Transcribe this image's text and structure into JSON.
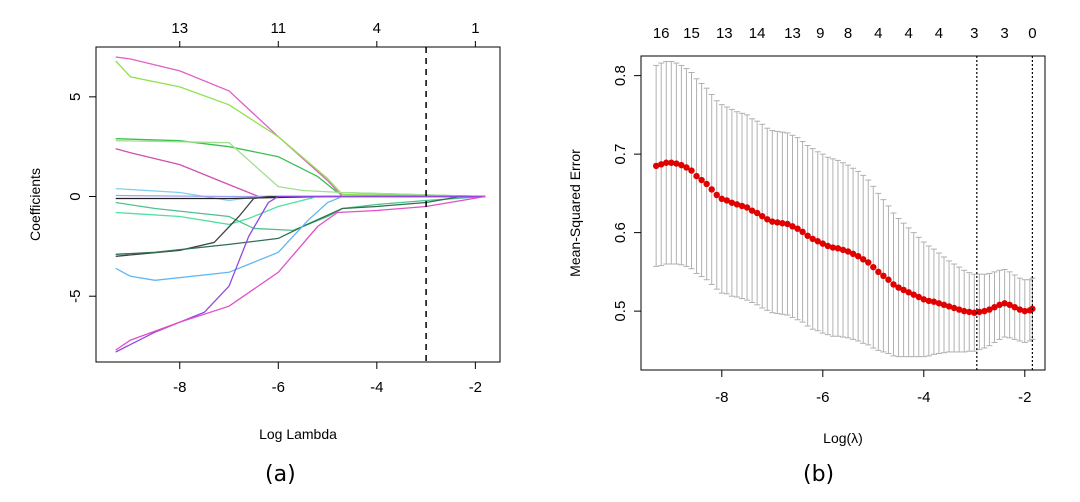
{
  "chart_data": [
    {
      "type": "line",
      "xlabel": "Log Lambda",
      "ylabel": "Coefficients",
      "caption": "(a)",
      "xlim": [
        -9.7,
        -1.5
      ],
      "ylim": [
        -8.3,
        7.5
      ],
      "xticks": [
        -8,
        -6,
        -4,
        -2
      ],
      "yticks": [
        -5,
        0,
        5
      ],
      "top_axis": {
        "positions": [
          -8,
          -6,
          -4,
          -2
        ],
        "labels": [
          "13",
          "11",
          "4",
          "1"
        ]
      },
      "vline": -3.0,
      "grid": false,
      "series": [
        {
          "color": "#e060c8",
          "points": [
            [
              -9.3,
              7.0
            ],
            [
              -9.0,
              6.9
            ],
            [
              -8.0,
              6.3
            ],
            [
              -7.0,
              5.3
            ],
            [
              -6.0,
              3.0
            ],
            [
              -5.0,
              0.8
            ],
            [
              -4.7,
              0.0
            ],
            [
              -1.8,
              0.0
            ]
          ]
        },
        {
          "color": "#90e050",
          "points": [
            [
              -9.3,
              6.8
            ],
            [
              -9.0,
              6.0
            ],
            [
              -8.0,
              5.5
            ],
            [
              -7.0,
              4.6
            ],
            [
              -6.0,
              3.0
            ],
            [
              -5.0,
              0.9
            ],
            [
              -4.7,
              0.1
            ],
            [
              -1.8,
              0.0
            ]
          ]
        },
        {
          "color": "#3cc050",
          "points": [
            [
              -9.3,
              2.9
            ],
            [
              -8.0,
              2.8
            ],
            [
              -7.0,
              2.5
            ],
            [
              -6.0,
              2.0
            ],
            [
              -5.2,
              1.0
            ],
            [
              -4.8,
              0.2
            ],
            [
              -1.8,
              0.0
            ]
          ]
        },
        {
          "color": "#d050b0",
          "points": [
            [
              -9.3,
              2.4
            ],
            [
              -9.0,
              2.2
            ],
            [
              -8.0,
              1.6
            ],
            [
              -7.0,
              0.6
            ],
            [
              -6.4,
              0.0
            ],
            [
              -1.8,
              0.0
            ]
          ]
        },
        {
          "color": "#a0e090",
          "points": [
            [
              -9.3,
              2.8
            ],
            [
              -7.0,
              2.7
            ],
            [
              -6.0,
              0.5
            ],
            [
              -5.5,
              0.3
            ],
            [
              -4.7,
              0.2
            ],
            [
              -1.8,
              0.0
            ]
          ]
        },
        {
          "color": "#80d0f0",
          "points": [
            [
              -9.3,
              0.4
            ],
            [
              -8.0,
              0.2
            ],
            [
              -7.0,
              -0.2
            ],
            [
              -6.4,
              0.0
            ],
            [
              -1.8,
              0.0
            ]
          ]
        },
        {
          "color": "#a0a0f0",
          "points": [
            [
              -9.3,
              0.05
            ],
            [
              -7.0,
              0.0
            ],
            [
              -6.0,
              0.0
            ],
            [
              -1.8,
              0.0
            ]
          ]
        },
        {
          "color": "#202020",
          "points": [
            [
              -9.3,
              -0.1
            ],
            [
              -7.0,
              -0.1
            ],
            [
              -5.0,
              0.0
            ],
            [
              -1.8,
              0.0
            ]
          ]
        },
        {
          "color": "#50e0a0",
          "points": [
            [
              -9.3,
              -0.8
            ],
            [
              -8.0,
              -1.0
            ],
            [
              -7.0,
              -1.4
            ],
            [
              -6.6,
              -1.1
            ],
            [
              -6.0,
              -0.5
            ],
            [
              -5.2,
              0.0
            ],
            [
              -1.8,
              0.0
            ]
          ]
        },
        {
          "color": "#50c090",
          "points": [
            [
              -9.3,
              -0.3
            ],
            [
              -8.5,
              -0.6
            ],
            [
              -7.0,
              -1.0
            ],
            [
              -6.5,
              -1.6
            ],
            [
              -5.7,
              -1.7
            ],
            [
              -5.0,
              -1.0
            ],
            [
              -4.7,
              -0.6
            ],
            [
              -4.0,
              -0.4
            ],
            [
              -3.0,
              -0.2
            ],
            [
              -1.8,
              0.0
            ]
          ]
        },
        {
          "color": "#404040",
          "points": [
            [
              -9.3,
              -3.0
            ],
            [
              -8.0,
              -2.7
            ],
            [
              -7.3,
              -2.3
            ],
            [
              -6.8,
              -1.0
            ],
            [
              -6.5,
              -0.1
            ],
            [
              -6.2,
              0.0
            ],
            [
              -1.8,
              0.0
            ]
          ]
        },
        {
          "color": "#307050",
          "points": [
            [
              -9.3,
              -2.9
            ],
            [
              -8.5,
              -2.8
            ],
            [
              -7.0,
              -2.4
            ],
            [
              -6.0,
              -2.1
            ],
            [
              -5.5,
              -1.5
            ],
            [
              -4.7,
              -0.6
            ],
            [
              -4.0,
              -0.5
            ],
            [
              -3.0,
              -0.3
            ],
            [
              -2.3,
              0.0
            ],
            [
              -1.8,
              0.0
            ]
          ]
        },
        {
          "color": "#60b8f0",
          "points": [
            [
              -9.3,
              -3.6
            ],
            [
              -9.0,
              -4.0
            ],
            [
              -8.5,
              -4.2
            ],
            [
              -7.0,
              -3.8
            ],
            [
              -6.0,
              -2.8
            ],
            [
              -5.4,
              -1.2
            ],
            [
              -5.0,
              -0.3
            ],
            [
              -4.7,
              0.0
            ],
            [
              -1.8,
              0.0
            ]
          ]
        },
        {
          "color": "#9048e0",
          "points": [
            [
              -9.3,
              -7.8
            ],
            [
              -8.5,
              -6.8
            ],
            [
              -7.5,
              -5.8
            ],
            [
              -7.0,
              -4.5
            ],
            [
              -6.6,
              -2.0
            ],
            [
              -6.2,
              -0.3
            ],
            [
              -6.0,
              0.0
            ],
            [
              -1.8,
              0.0
            ]
          ]
        },
        {
          "color": "#e050c8",
          "points": [
            [
              -9.3,
              -7.7
            ],
            [
              -9.0,
              -7.2
            ],
            [
              -8.0,
              -6.3
            ],
            [
              -7.0,
              -5.5
            ],
            [
              -6.0,
              -3.8
            ],
            [
              -5.2,
              -1.5
            ],
            [
              -4.8,
              -0.8
            ],
            [
              -4.0,
              -0.7
            ],
            [
              -3.0,
              -0.5
            ],
            [
              -1.8,
              0.0
            ]
          ]
        }
      ]
    },
    {
      "type": "scatter",
      "xlabel": "Log(λ)",
      "ylabel": "Mean-Squared Error",
      "caption": "(b)",
      "xlim": [
        -9.6,
        -1.6
      ],
      "ylim": [
        0.425,
        0.825
      ],
      "xticks": [
        -8,
        -6,
        -4,
        -2
      ],
      "yticks": [
        0.5,
        0.6,
        0.7,
        0.8
      ],
      "top_axis": {
        "positions": [
          -9.2,
          -8.6,
          -7.95,
          -7.3,
          -6.6,
          -6.05,
          -5.5,
          -4.9,
          -4.3,
          -3.7,
          -3.0,
          -2.4,
          -1.85
        ],
        "labels": [
          "16",
          "15",
          "13",
          "14",
          "13",
          "9",
          "8",
          "4",
          "4",
          "4",
          "3",
          "3",
          "0"
        ]
      },
      "vlines": [
        -2.95,
        -1.85
      ],
      "grid": false,
      "point_color": "#e00000",
      "errorbar_color": "#b0b0b0",
      "x": [
        -9.3,
        -9.2,
        -9.1,
        -9.0,
        -8.9,
        -8.8,
        -8.7,
        -8.6,
        -8.5,
        -8.4,
        -8.3,
        -8.2,
        -8.1,
        -8.0,
        -7.9,
        -7.8,
        -7.7,
        -7.6,
        -7.5,
        -7.4,
        -7.3,
        -7.2,
        -7.1,
        -7.0,
        -6.9,
        -6.8,
        -6.7,
        -6.6,
        -6.5,
        -6.4,
        -6.3,
        -6.2,
        -6.1,
        -6.0,
        -5.9,
        -5.8,
        -5.7,
        -5.6,
        -5.5,
        -5.4,
        -5.3,
        -5.2,
        -5.1,
        -5.0,
        -4.9,
        -4.8,
        -4.7,
        -4.6,
        -4.5,
        -4.4,
        -4.3,
        -4.2,
        -4.1,
        -4.0,
        -3.9,
        -3.8,
        -3.7,
        -3.6,
        -3.5,
        -3.4,
        -3.3,
        -3.2,
        -3.1,
        -3.0,
        -2.9,
        -2.8,
        -2.7,
        -2.6,
        -2.5,
        -2.4,
        -2.3,
        -2.2,
        -2.1,
        -2.0,
        -1.9,
        -1.85
      ],
      "y": [
        0.685,
        0.687,
        0.689,
        0.689,
        0.688,
        0.686,
        0.683,
        0.679,
        0.672,
        0.667,
        0.662,
        0.655,
        0.648,
        0.643,
        0.641,
        0.638,
        0.636,
        0.634,
        0.632,
        0.628,
        0.625,
        0.621,
        0.617,
        0.614,
        0.613,
        0.612,
        0.611,
        0.608,
        0.605,
        0.601,
        0.596,
        0.592,
        0.589,
        0.586,
        0.583,
        0.581,
        0.58,
        0.578,
        0.576,
        0.573,
        0.57,
        0.566,
        0.562,
        0.556,
        0.55,
        0.545,
        0.54,
        0.534,
        0.53,
        0.527,
        0.524,
        0.521,
        0.518,
        0.515,
        0.513,
        0.512,
        0.51,
        0.508,
        0.506,
        0.504,
        0.502,
        0.5,
        0.499,
        0.498,
        0.499,
        0.5,
        0.502,
        0.505,
        0.508,
        0.51,
        0.508,
        0.505,
        0.502,
        0.5,
        0.501,
        0.503
      ],
      "err_half": [
        0.128,
        0.129,
        0.129,
        0.129,
        0.128,
        0.127,
        0.126,
        0.125,
        0.124,
        0.123,
        0.122,
        0.121,
        0.12,
        0.12,
        0.119,
        0.119,
        0.118,
        0.118,
        0.118,
        0.117,
        0.117,
        0.117,
        0.116,
        0.116,
        0.116,
        0.116,
        0.116,
        0.116,
        0.116,
        0.115,
        0.115,
        0.115,
        0.114,
        0.114,
        0.113,
        0.113,
        0.112,
        0.111,
        0.11,
        0.109,
        0.108,
        0.107,
        0.105,
        0.103,
        0.1,
        0.097,
        0.094,
        0.091,
        0.088,
        0.085,
        0.082,
        0.079,
        0.076,
        0.073,
        0.07,
        0.067,
        0.064,
        0.061,
        0.058,
        0.056,
        0.054,
        0.052,
        0.05,
        0.049,
        0.048,
        0.047,
        0.046,
        0.045,
        0.044,
        0.043,
        0.042,
        0.041,
        0.04,
        0.04,
        0.039,
        0.039
      ]
    }
  ]
}
